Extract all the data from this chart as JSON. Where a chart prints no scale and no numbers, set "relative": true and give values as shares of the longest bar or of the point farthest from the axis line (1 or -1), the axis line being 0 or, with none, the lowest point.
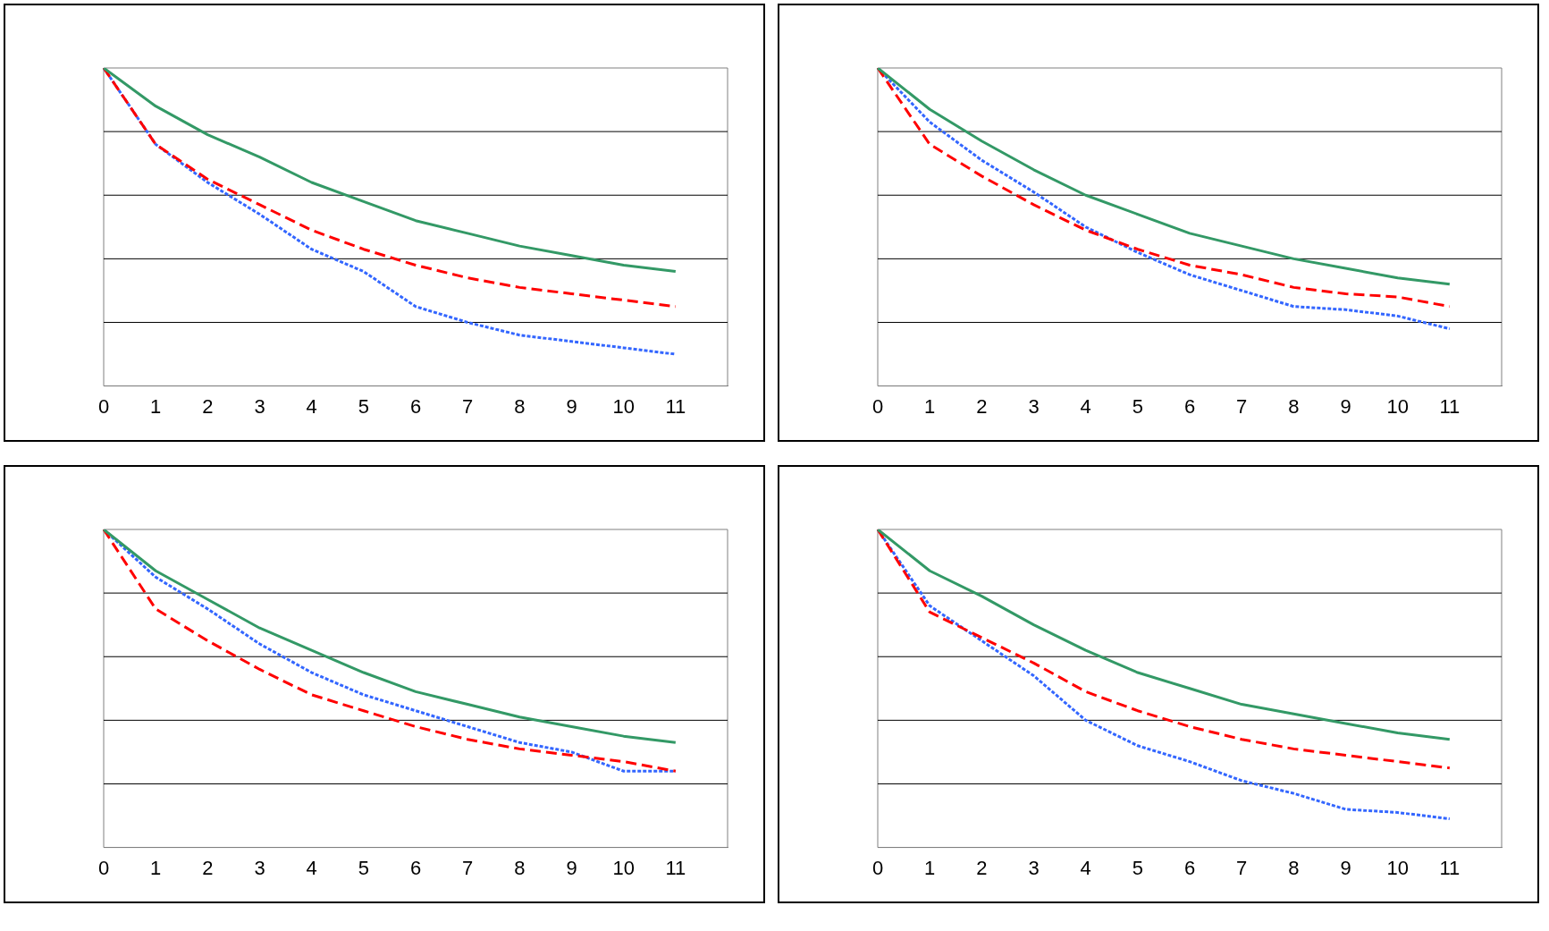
{
  "chart_data": [
    {
      "type": "line",
      "relative": true,
      "grid": "y",
      "categories": [
        "0",
        "1",
        "2",
        "3",
        "4",
        "5",
        "6",
        "7",
        "8",
        "9",
        "10",
        "11",
        null
      ],
      "series": [
        {
          "color": "#339966",
          "line_style": "solid",
          "values": [
            1,
            0.88,
            0.79,
            0.72,
            0.64,
            0.58,
            0.52,
            0.48,
            0.44,
            0.41,
            0.38,
            0.36,
            null
          ]
        },
        {
          "color": "#ff0000",
          "line_style": "dashed",
          "values": [
            1,
            0.76,
            0.65,
            0.57,
            0.49,
            0.43,
            0.38,
            0.34,
            0.31,
            0.29,
            0.27,
            0.25,
            null
          ]
        },
        {
          "color": "#3366ff",
          "line_style": "dotted",
          "values": [
            1,
            0.76,
            0.64,
            0.54,
            0.43,
            0.36,
            0.25,
            0.2,
            0.16,
            0.14,
            0.12,
            0.1,
            null
          ]
        }
      ]
    },
    {
      "type": "line",
      "relative": true,
      "grid": "y",
      "categories": [
        "0",
        "1",
        "2",
        "3",
        "4",
        "5",
        "6",
        "7",
        "8",
        "9",
        "10",
        "11",
        null
      ],
      "series": [
        {
          "color": "#339966",
          "line_style": "solid",
          "values": [
            1,
            0.87,
            0.77,
            0.68,
            0.6,
            0.54,
            0.48,
            0.44,
            0.4,
            0.37,
            0.34,
            0.32,
            null
          ]
        },
        {
          "color": "#ff0000",
          "line_style": "dashed",
          "values": [
            1,
            0.76,
            0.66,
            0.57,
            0.49,
            0.43,
            0.38,
            0.35,
            0.31,
            0.29,
            0.28,
            0.25,
            null
          ]
        },
        {
          "color": "#3366ff",
          "line_style": "dotted",
          "values": [
            1,
            0.83,
            0.71,
            0.61,
            0.5,
            0.42,
            0.35,
            0.3,
            0.25,
            0.24,
            0.22,
            0.18,
            null
          ]
        }
      ]
    },
    {
      "type": "line",
      "relative": true,
      "grid": "y",
      "categories": [
        "0",
        "1",
        "2",
        "3",
        "4",
        "5",
        "6",
        "7",
        "8",
        "9",
        "10",
        "11",
        null
      ],
      "series": [
        {
          "color": "#339966",
          "line_style": "solid",
          "values": [
            1,
            0.87,
            0.78,
            0.69,
            0.62,
            0.55,
            0.49,
            0.45,
            0.41,
            0.38,
            0.35,
            0.33,
            null
          ]
        },
        {
          "color": "#ff0000",
          "line_style": "dashed",
          "values": [
            1,
            0.75,
            0.65,
            0.56,
            0.48,
            0.43,
            0.38,
            0.34,
            0.31,
            0.29,
            0.27,
            0.24,
            null
          ]
        },
        {
          "color": "#3366ff",
          "line_style": "dotted",
          "values": [
            1,
            0.85,
            0.75,
            0.64,
            0.55,
            0.48,
            0.43,
            0.38,
            0.33,
            0.3,
            0.24,
            0.24,
            null
          ]
        }
      ]
    },
    {
      "type": "line",
      "relative": true,
      "grid": "y",
      "categories": [
        "0",
        "1",
        "2",
        "3",
        "4",
        "5",
        "6",
        "7",
        "8",
        "9",
        "10",
        "11",
        null
      ],
      "series": [
        {
          "color": "#339966",
          "line_style": "solid",
          "values": [
            1,
            0.87,
            0.79,
            0.7,
            0.62,
            0.55,
            0.5,
            0.45,
            0.42,
            0.39,
            0.36,
            0.34,
            null
          ]
        },
        {
          "color": "#ff0000",
          "line_style": "dashed",
          "values": [
            1,
            0.74,
            0.66,
            0.58,
            0.49,
            0.43,
            0.38,
            0.34,
            0.31,
            0.29,
            0.27,
            0.25,
            null
          ]
        },
        {
          "color": "#3366ff",
          "line_style": "dotted",
          "values": [
            1,
            0.76,
            0.65,
            0.54,
            0.4,
            0.32,
            0.27,
            0.21,
            0.17,
            0.12,
            0.11,
            0.09,
            null
          ]
        }
      ]
    }
  ]
}
